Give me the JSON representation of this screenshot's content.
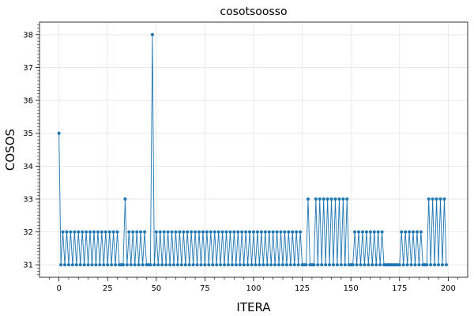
{
  "chart_data": {
    "type": "line",
    "title": "cosotsoosso",
    "xlabel": "ITERA",
    "ylabel": "COSOS",
    "xlim": [
      -10,
      210
    ],
    "ylim": [
      30.62,
      38.38
    ],
    "xticks": [
      0,
      25,
      50,
      75,
      100,
      125,
      150,
      175,
      200
    ],
    "yticks": [
      31,
      32,
      33,
      34,
      35,
      36,
      37,
      38
    ],
    "grid": true,
    "legend": "none",
    "series": [
      {
        "color": "#1f77b4",
        "marker": "circle",
        "x": [
          0,
          1,
          2,
          3,
          4,
          5,
          6,
          7,
          8,
          9,
          10,
          11,
          12,
          13,
          14,
          15,
          16,
          17,
          18,
          19,
          20,
          21,
          22,
          23,
          24,
          25,
          26,
          27,
          28,
          29,
          30,
          31,
          32,
          33,
          34,
          35,
          36,
          37,
          38,
          39,
          40,
          41,
          42,
          43,
          44,
          45,
          46,
          47,
          48,
          49,
          50,
          51,
          52,
          53,
          54,
          55,
          56,
          57,
          58,
          59,
          60,
          61,
          62,
          63,
          64,
          65,
          66,
          67,
          68,
          69,
          70,
          71,
          72,
          73,
          74,
          75,
          76,
          77,
          78,
          79,
          80,
          81,
          82,
          83,
          84,
          85,
          86,
          87,
          88,
          89,
          90,
          91,
          92,
          93,
          94,
          95,
          96,
          97,
          98,
          99,
          100,
          101,
          102,
          103,
          104,
          105,
          106,
          107,
          108,
          109,
          110,
          111,
          112,
          113,
          114,
          115,
          116,
          117,
          118,
          119,
          120,
          121,
          122,
          123,
          124,
          125,
          126,
          127,
          128,
          129,
          130,
          131,
          132,
          133,
          134,
          135,
          136,
          137,
          138,
          139,
          140,
          141,
          142,
          143,
          144,
          145,
          146,
          147,
          148,
          149,
          150,
          151,
          152,
          153,
          154,
          155,
          156,
          157,
          158,
          159,
          160,
          161,
          162,
          163,
          164,
          165,
          166,
          167,
          168,
          169,
          170,
          171,
          172,
          173,
          174,
          175,
          176,
          177,
          178,
          179,
          180,
          181,
          182,
          183,
          184,
          185,
          186,
          187,
          188,
          189,
          190,
          191,
          192,
          193,
          194,
          195,
          196,
          197,
          198,
          199
        ],
        "y": [
          35,
          31,
          32,
          31,
          32,
          31,
          32,
          31,
          32,
          31,
          32,
          31,
          32,
          31,
          32,
          31,
          32,
          31,
          32,
          31,
          32,
          31,
          32,
          31,
          32,
          31,
          32,
          31,
          32,
          31,
          32,
          31,
          31,
          31,
          33,
          31,
          32,
          31,
          32,
          31,
          32,
          31,
          32,
          31,
          32,
          31,
          31,
          31,
          38,
          31,
          32,
          31,
          32,
          31,
          32,
          31,
          32,
          31,
          32,
          31,
          32,
          31,
          32,
          31,
          32,
          31,
          32,
          31,
          32,
          31,
          32,
          31,
          32,
          31,
          32,
          31,
          32,
          31,
          32,
          31,
          32,
          31,
          32,
          31,
          32,
          31,
          32,
          31,
          32,
          31,
          32,
          31,
          32,
          31,
          32,
          31,
          32,
          31,
          32,
          31,
          32,
          31,
          32,
          31,
          32,
          31,
          32,
          31,
          32,
          31,
          32,
          31,
          32,
          31,
          32,
          31,
          32,
          31,
          32,
          31,
          32,
          31,
          32,
          31,
          32,
          31,
          31,
          31,
          33,
          31,
          31,
          31,
          33,
          31,
          33,
          31,
          33,
          31,
          33,
          31,
          33,
          31,
          33,
          31,
          33,
          31,
          33,
          31,
          33,
          31,
          31,
          31,
          32,
          31,
          32,
          31,
          32,
          31,
          32,
          31,
          32,
          31,
          32,
          31,
          32,
          31,
          32,
          31,
          31,
          31,
          31,
          31,
          31,
          31,
          31,
          31,
          32,
          31,
          32,
          31,
          32,
          31,
          32,
          31,
          32,
          31,
          32,
          31,
          31,
          31,
          33,
          31,
          33,
          31,
          33,
          31,
          33,
          31,
          33,
          31
        ]
      }
    ]
  }
}
